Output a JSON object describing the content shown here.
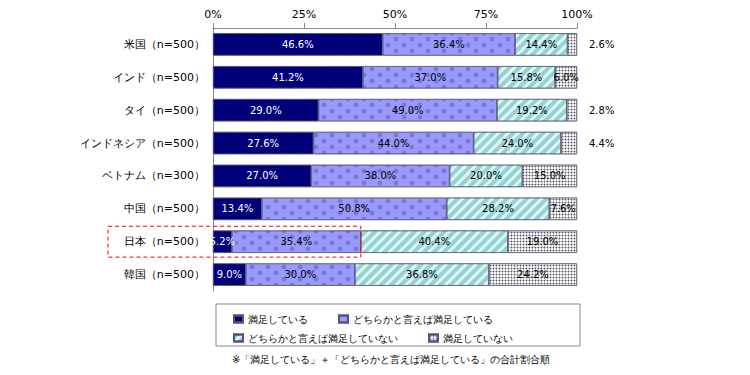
{
  "chart_data": {
    "type": "bar",
    "orientation": "horizontal",
    "stacked": true,
    "data_labels": true,
    "grid": false,
    "annotation": "※「満足している」＋「どちらかと言えば満足している」の合計割合順",
    "categories": [
      "米国（n=500）",
      "インド（n=500）",
      "タイ（n=500）",
      "インドネシア（n=500）",
      "ベトナム（n=300）",
      "中国（n=500）",
      "日本（n=500）",
      "韓国（n=500）"
    ],
    "xlim": [
      0,
      100
    ],
    "xticks": [
      {
        "value": 0,
        "label": "0%"
      },
      {
        "value": 25,
        "label": "25%"
      },
      {
        "value": 50,
        "label": "50%"
      },
      {
        "value": 75,
        "label": "75%"
      },
      {
        "value": 100,
        "label": "100%"
      }
    ],
    "series": [
      {
        "name": "満足している",
        "color": "#000080",
        "values": [
          46.6,
          41.2,
          29.0,
          27.6,
          27.0,
          13.4,
          5.2,
          9.0
        ],
        "value_labels": [
          "46.6%",
          "41.2%",
          "29.0%",
          "27.6%",
          "27.0%",
          "13.4%",
          "5.2%",
          "9.0%"
        ]
      },
      {
        "name": "どちらかと言えば満足している",
        "color": "#9999ff",
        "values": [
          36.4,
          37.0,
          49.0,
          44.0,
          38.0,
          50.8,
          35.4,
          30.0
        ],
        "value_labels": [
          "36.4%",
          "37.0%",
          "49.0%",
          "44.0%",
          "38.0%",
          "50.8%",
          "35.4%",
          "30.0%"
        ]
      },
      {
        "name": "どちらかと言えば満足していない",
        "color": "#ccffff",
        "values": [
          14.4,
          15.8,
          19.2,
          24.0,
          20.0,
          28.2,
          40.4,
          36.8
        ],
        "value_labels": [
          "14.4%",
          "15.8%",
          "19.2%",
          "24.0%",
          "20.0%",
          "28.2%",
          "40.4%",
          "36.8%"
        ]
      },
      {
        "name": "満足していない",
        "color": "#ffffff",
        "values": [
          2.6,
          6.0,
          2.8,
          4.4,
          15.0,
          7.6,
          19.0,
          24.2
        ],
        "value_labels": [
          "2.6%",
          "6.0%",
          "2.8%",
          "4.4%",
          "15.0%",
          "7.6%",
          "19.0%",
          "24.2%"
        ]
      }
    ]
  }
}
